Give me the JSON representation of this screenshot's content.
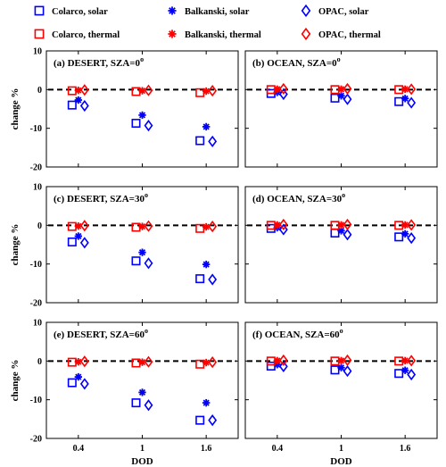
{
  "chart_data": {
    "type": "scatter",
    "xlabel": "DOD",
    "ylabel": "change %",
    "categories": [
      "0.4",
      "1",
      "1.6"
    ],
    "ylim": [
      -20,
      10
    ],
    "yticks": [
      10,
      0,
      -10,
      -20
    ],
    "reference_line": 0,
    "colors": {
      "solar": "#0000ff",
      "thermal": "#ff0000",
      "reference": "#000000"
    },
    "legend": [
      {
        "name": "Colarco, solar",
        "marker": "square",
        "color": "#0000ff"
      },
      {
        "name": "Balkanski, solar",
        "marker": "asterisk",
        "color": "#0000ff"
      },
      {
        "name": "OPAC, solar",
        "marker": "diamond",
        "color": "#0000ff"
      },
      {
        "name": "Colarco, thermal",
        "marker": "square",
        "color": "#ff0000"
      },
      {
        "name": "Balkanski, thermal",
        "marker": "asterisk",
        "color": "#ff0000"
      },
      {
        "name": "OPAC, thermal",
        "marker": "diamond",
        "color": "#ff0000"
      }
    ],
    "panels": [
      {
        "title": "(a) DESERT, SZA=0",
        "title_superscript": "o",
        "series": [
          {
            "name": "Colarco, solar",
            "values": [
              -4,
              -8.7,
              -13.2
            ]
          },
          {
            "name": "Balkanski, solar",
            "values": [
              -2.7,
              -6.6,
              -9.6
            ]
          },
          {
            "name": "OPAC, solar",
            "values": [
              -4.2,
              -9.3,
              -13.4
            ]
          },
          {
            "name": "Colarco, thermal",
            "values": [
              -0.3,
              -0.5,
              -0.8
            ]
          },
          {
            "name": "Balkanski, thermal",
            "values": [
              -0.2,
              -0.3,
              -0.4
            ]
          },
          {
            "name": "OPAC, thermal",
            "values": [
              -0.1,
              -0.2,
              -0.3
            ]
          }
        ]
      },
      {
        "title": "(b) OCEAN, SZA=0",
        "title_superscript": "o",
        "series": [
          {
            "name": "Colarco, solar",
            "values": [
              -1,
              -2.2,
              -3.1
            ]
          },
          {
            "name": "Balkanski, solar",
            "values": [
              -0.7,
              -1.6,
              -2.3
            ]
          },
          {
            "name": "OPAC, solar",
            "values": [
              -1.2,
              -2.5,
              -3.4
            ]
          },
          {
            "name": "Colarco, thermal",
            "values": [
              0,
              0,
              0
            ]
          },
          {
            "name": "Balkanski, thermal",
            "values": [
              0.1,
              0.1,
              0.1
            ]
          },
          {
            "name": "OPAC, thermal",
            "values": [
              0.2,
              0.2,
              0.1
            ]
          }
        ]
      },
      {
        "title": "(c) DESERT, SZA=30",
        "title_superscript": "o",
        "series": [
          {
            "name": "Colarco, solar",
            "values": [
              -4.3,
              -9.2,
              -13.8
            ]
          },
          {
            "name": "Balkanski, solar",
            "values": [
              -2.8,
              -7,
              -10.1
            ]
          },
          {
            "name": "OPAC, solar",
            "values": [
              -4.5,
              -9.8,
              -14
            ]
          },
          {
            "name": "Colarco, thermal",
            "values": [
              -0.3,
              -0.5,
              -0.8
            ]
          },
          {
            "name": "Balkanski, thermal",
            "values": [
              -0.2,
              -0.3,
              -0.4
            ]
          },
          {
            "name": "OPAC, thermal",
            "values": [
              -0.1,
              -0.2,
              -0.3
            ]
          }
        ]
      },
      {
        "title": "(d) OCEAN, SZA=30",
        "title_superscript": "o",
        "series": [
          {
            "name": "Colarco, solar",
            "values": [
              -0.8,
              -2,
              -3
            ]
          },
          {
            "name": "Balkanski, solar",
            "values": [
              -0.6,
              -1.4,
              -2.2
            ]
          },
          {
            "name": "OPAC, solar",
            "values": [
              -1.1,
              -2.4,
              -3.3
            ]
          },
          {
            "name": "Colarco, thermal",
            "values": [
              0,
              0,
              0
            ]
          },
          {
            "name": "Balkanski, thermal",
            "values": [
              0.1,
              0.1,
              0.1
            ]
          },
          {
            "name": "OPAC, thermal",
            "values": [
              0.2,
              0.2,
              0.1
            ]
          }
        ]
      },
      {
        "title": "(e) DESERT, SZA=60",
        "title_superscript": "o",
        "series": [
          {
            "name": "Colarco, solar",
            "values": [
              -5.6,
              -10.8,
              -15.3
            ]
          },
          {
            "name": "Balkanski, solar",
            "values": [
              -4.1,
              -8.1,
              -10.8
            ]
          },
          {
            "name": "OPAC, solar",
            "values": [
              -5.9,
              -11.4,
              -15.3
            ]
          },
          {
            "name": "Colarco, thermal",
            "values": [
              -0.3,
              -0.5,
              -0.8
            ]
          },
          {
            "name": "Balkanski, thermal",
            "values": [
              -0.2,
              -0.3,
              -0.4
            ]
          },
          {
            "name": "OPAC, thermal",
            "values": [
              -0.1,
              -0.2,
              -0.3
            ]
          }
        ]
      },
      {
        "title": "(f) OCEAN, SZA=60",
        "title_superscript": "o",
        "series": [
          {
            "name": "Colarco, solar",
            "values": [
              -1.3,
              -2.3,
              -3.2
            ]
          },
          {
            "name": "Balkanski, solar",
            "values": [
              -0.9,
              -1.7,
              -2.4
            ]
          },
          {
            "name": "OPAC, solar",
            "values": [
              -1.4,
              -2.6,
              -3.5
            ]
          },
          {
            "name": "Colarco, thermal",
            "values": [
              0,
              0,
              0
            ]
          },
          {
            "name": "Balkanski, thermal",
            "values": [
              0.1,
              0.1,
              0.1
            ]
          },
          {
            "name": "OPAC, thermal",
            "values": [
              0.2,
              0.2,
              0.1
            ]
          }
        ]
      }
    ]
  }
}
